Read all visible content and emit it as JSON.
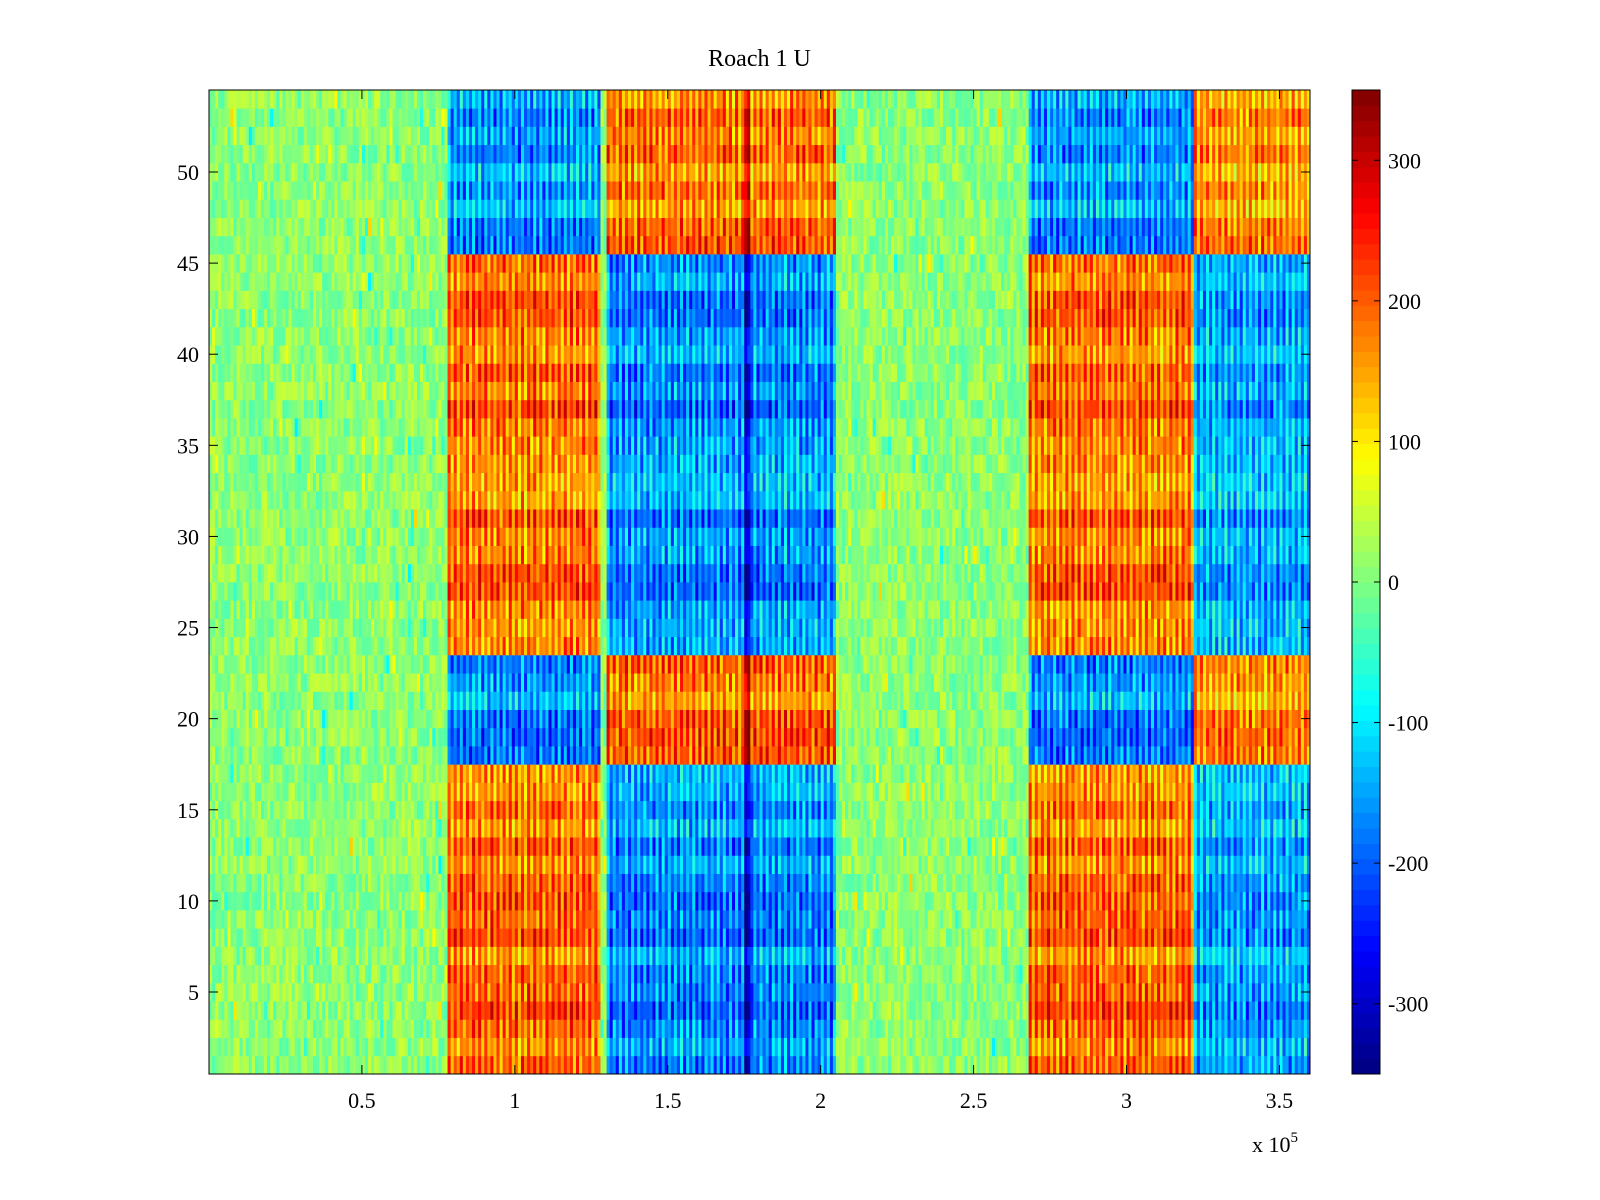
{
  "chart_data": {
    "type": "heatmap",
    "title": "Roach 1 U",
    "colormap": "jet",
    "x_range": [
      1,
      360000
    ],
    "y_range": [
      0.5,
      54.5
    ],
    "x_ticks": [
      50000,
      100000,
      150000,
      200000,
      250000,
      300000,
      350000
    ],
    "x_tick_labels": [
      "0.5",
      "1",
      "1.5",
      "2",
      "2.5",
      "3",
      "3.5"
    ],
    "x_multiplier_label": "x 10",
    "x_multiplier_exponent": "5",
    "y_ticks": [
      5,
      10,
      15,
      20,
      25,
      30,
      35,
      40,
      45,
      50
    ],
    "y_tick_labels": [
      "5",
      "10",
      "15",
      "20",
      "25",
      "30",
      "35",
      "40",
      "45",
      "50"
    ],
    "rows": 54,
    "columns": 360,
    "color_limits": [
      -350,
      350
    ],
    "colorbar_ticks": [
      300,
      200,
      100,
      0,
      -100,
      -200,
      -300
    ],
    "colorbar_tick_labels": [
      "300",
      "200",
      "100",
      "0",
      "-100",
      "-200",
      "-300"
    ],
    "grid": false,
    "approximate_structure": {
      "high_band_1_x": [
        78000,
        128000
      ],
      "low_band_1_x": [
        130000,
        205000
      ],
      "strong_low_column_x": 176000,
      "high_band_2_x": [
        268000,
        322000
      ],
      "low_band_2_x": [
        322000,
        360000
      ],
      "inverted_rows": [
        18,
        19,
        20,
        21,
        22,
        23,
        46,
        47,
        48,
        49,
        50,
        51,
        52,
        53,
        54
      ],
      "background_value": 0
    }
  }
}
